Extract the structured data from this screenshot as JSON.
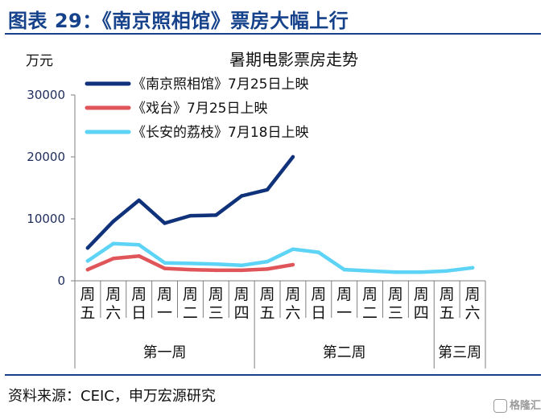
{
  "figure_title": "图表 29：《南京照相馆》票房大幅上行",
  "source": "资料来源：CEIC，申万宏源研究",
  "watermark": "格隆汇",
  "colors": {
    "accent": "#15428b",
    "series1": "#10327a",
    "series2": "#e0555a",
    "series3": "#5dd3f5"
  },
  "chart_data": {
    "type": "line",
    "title": "暑期电影票房走势",
    "ylabel": "万元",
    "xlabel": "",
    "ylim": [
      0,
      30000
    ],
    "yticks": [
      0,
      10000,
      20000,
      30000
    ],
    "ytick_labels": [
      "0",
      "10000",
      "20000",
      "30000"
    ],
    "grid": false,
    "legend_position": "top",
    "categories": [
      "周五",
      "周六",
      "周日",
      "周一",
      "周二",
      "周三",
      "周四",
      "周五",
      "周六",
      "周日",
      "周一",
      "周二",
      "周三",
      "周四",
      "周五",
      "周六"
    ],
    "groups": [
      {
        "label": "第一周",
        "start": 0,
        "end": 6
      },
      {
        "label": "第二周",
        "start": 7,
        "end": 13
      },
      {
        "label": "第三周",
        "start": 14,
        "end": 15
      }
    ],
    "series": [
      {
        "name": "《南京照相馆》7月25日上映",
        "color": "#10327a",
        "values": [
          5300,
          9600,
          13000,
          9300,
          10500,
          10600,
          13700,
          14700,
          20000,
          null,
          null,
          null,
          null,
          null,
          null,
          null
        ]
      },
      {
        "name": "《戏台》7月25日上映",
        "color": "#e0555a",
        "values": [
          1800,
          3600,
          4000,
          2000,
          1800,
          1700,
          1700,
          1900,
          2600,
          null,
          null,
          null,
          null,
          null,
          null,
          null
        ]
      },
      {
        "name": "《长安的荔枝》7月18日上映",
        "color": "#5dd3f5",
        "values": [
          3200,
          6000,
          5800,
          2900,
          2800,
          2700,
          2500,
          3100,
          5100,
          4600,
          1800,
          1600,
          1400,
          1400,
          1600,
          2100
        ]
      }
    ]
  }
}
